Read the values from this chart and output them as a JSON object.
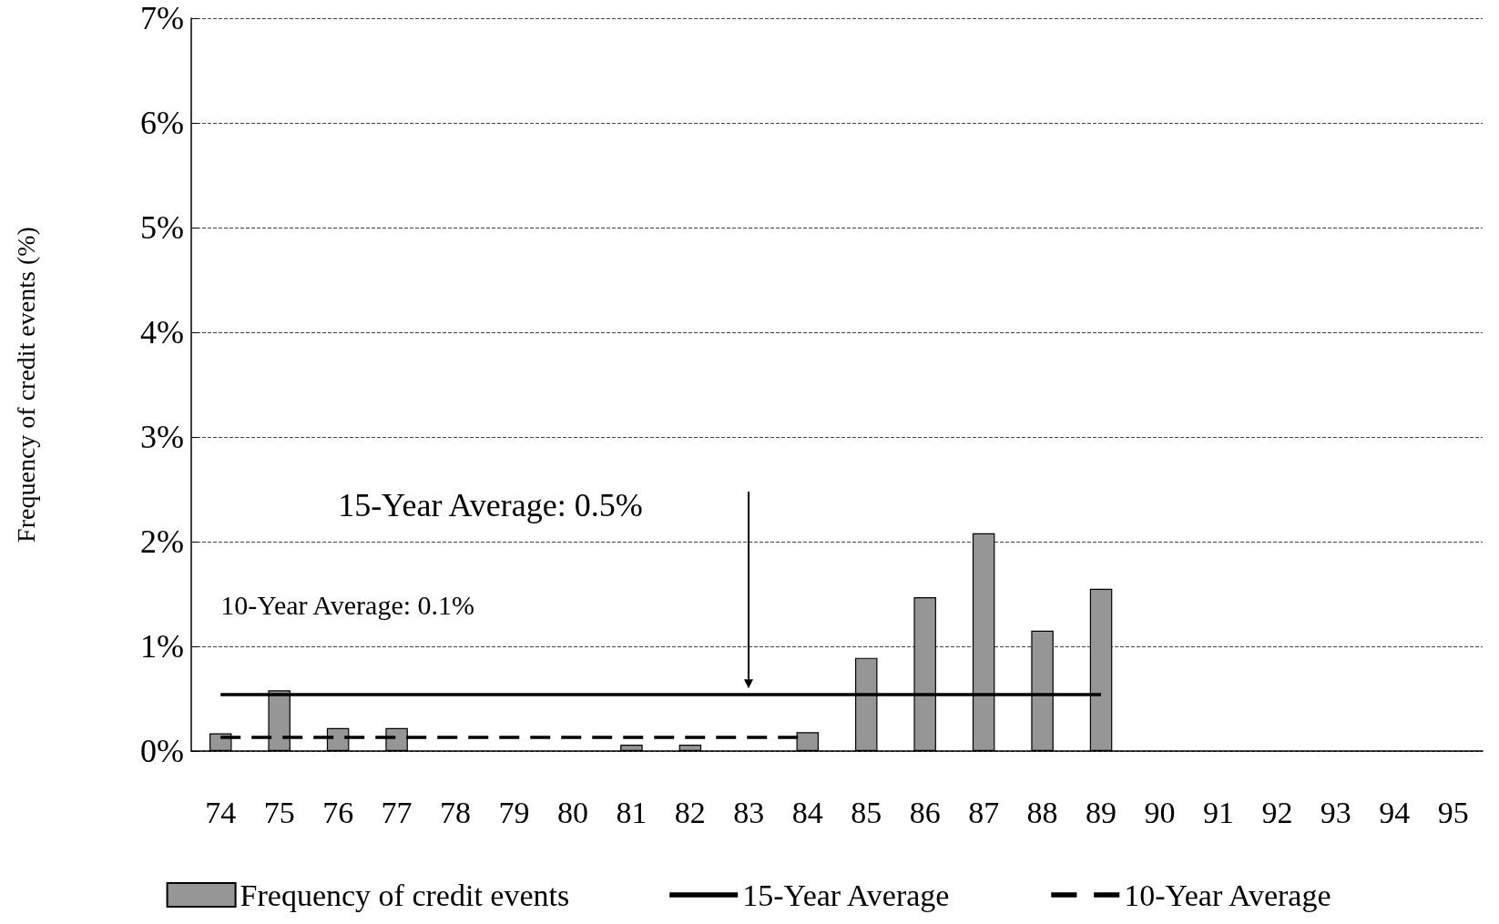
{
  "chart_data": {
    "type": "bar",
    "ylabel": "Frequency of credit events (%)",
    "categories": [
      "74",
      "75",
      "76",
      "77",
      "78",
      "79",
      "80",
      "81",
      "82",
      "83",
      "84",
      "85",
      "86",
      "87",
      "88",
      "89",
      "90",
      "91",
      "92",
      "93",
      "94",
      "95"
    ],
    "series": [
      {
        "name": "Frequency of credit events",
        "color": "#969696",
        "values": [
          0.17,
          0.58,
          0.22,
          0.22,
          0,
          0,
          0,
          0.06,
          0.06,
          0,
          0.18,
          0.89,
          1.47,
          2.08,
          1.15,
          1.55,
          null,
          null,
          null,
          null,
          null,
          null
        ]
      },
      {
        "name": "15-Year Average",
        "type": "line",
        "color": "#000000",
        "line_style": "solid",
        "values": [
          0.54,
          0.54,
          0.54,
          0.54,
          0.54,
          0.54,
          0.54,
          0.54,
          0.54,
          0.54,
          0.54,
          0.54,
          0.54,
          0.54,
          0.54,
          0.54,
          null,
          null,
          null,
          null,
          null,
          null
        ]
      },
      {
        "name": "10-Year Average",
        "type": "line",
        "color": "#000000",
        "line_style": "dashed",
        "values": [
          0.13,
          0.13,
          0.13,
          0.13,
          0.13,
          0.13,
          0.13,
          0.13,
          0.13,
          0.13,
          0.13,
          null,
          null,
          null,
          null,
          null,
          null,
          null,
          null,
          null,
          null,
          null
        ]
      }
    ],
    "ylim": [
      0,
      7
    ],
    "yticks": [
      {
        "value": 0,
        "label": "0%"
      },
      {
        "value": 1,
        "label": "1%"
      },
      {
        "value": 2,
        "label": "2%"
      },
      {
        "value": 3,
        "label": "3%"
      },
      {
        "value": 4,
        "label": "4%"
      },
      {
        "value": 5,
        "label": "5%"
      },
      {
        "value": 6,
        "label": "6%"
      },
      {
        "value": 7,
        "label": "7%"
      }
    ],
    "grid": "y",
    "legend": "bottom",
    "marker": "none",
    "annotations": [
      "15-Year Average: 0.5%",
      "10-Year Average: 0.1%"
    ]
  }
}
